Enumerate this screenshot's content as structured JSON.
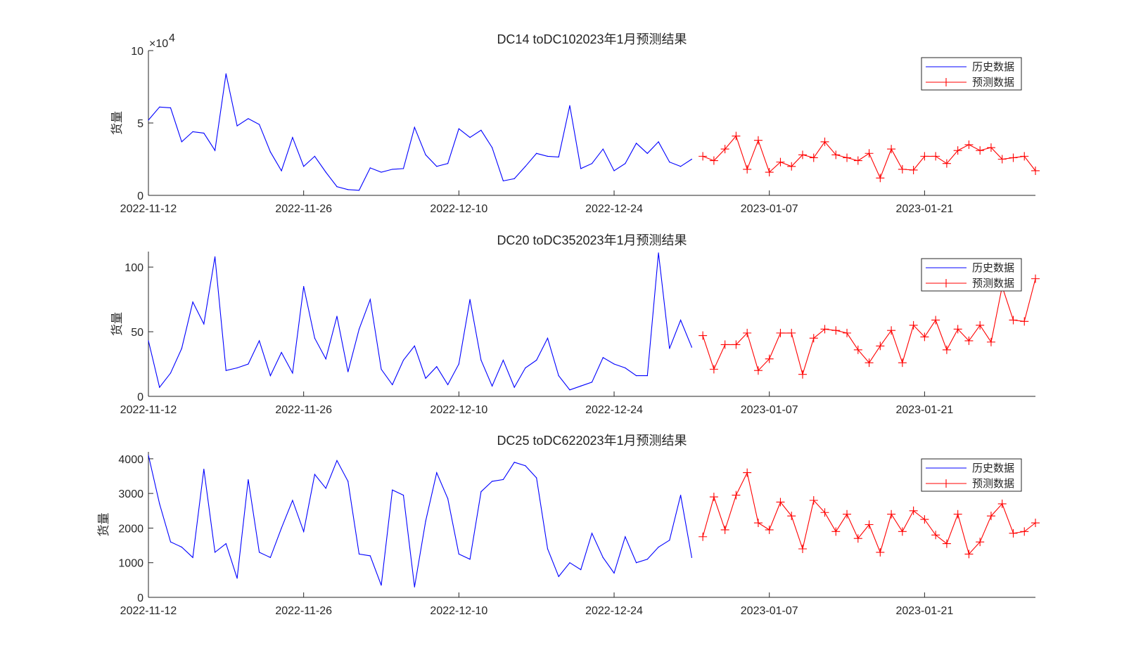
{
  "chart_data": [
    {
      "type": "line",
      "title": "DC14 toDC102023年1月预测结果",
      "ylabel": "货量",
      "xlabel": "",
      "ylim": [
        0,
        100000
      ],
      "yticks": [
        0,
        50000,
        100000
      ],
      "ytick_labels": [
        "0",
        "5",
        "10"
      ],
      "y_exponent_label": "×10",
      "y_exponent_power": "4",
      "xlim": [
        "2022-11-12",
        "2023-01-31"
      ],
      "xticks": [
        "2022-11-12",
        "2022-11-26",
        "2022-12-10",
        "2022-12-24",
        "2023-01-07",
        "2023-01-21"
      ],
      "legend_position": "top-right",
      "series": [
        {
          "name": "历史数据",
          "color": "#0000ff",
          "marker": "none",
          "start_date": "2022-11-12",
          "values": [
            52000,
            61000,
            60500,
            37000,
            44000,
            43000,
            31000,
            84000,
            48000,
            53000,
            49000,
            30000,
            17000,
            40000,
            20000,
            27000,
            16000,
            6000,
            4000,
            3500,
            19000,
            16000,
            18000,
            18500,
            47000,
            28000,
            20000,
            22000,
            46000,
            40000,
            45000,
            33000,
            10000,
            11500,
            20000,
            29000,
            27000,
            26500,
            62000,
            18500,
            22000,
            32000,
            17000,
            22000,
            36000,
            29000,
            37000,
            23000,
            20000,
            25000
          ]
        },
        {
          "name": "预测数据",
          "color": "#ff0000",
          "marker": "+",
          "start_date": "2023-01-01",
          "values": [
            27000,
            24000,
            32000,
            41000,
            18000,
            38000,
            16000,
            23000,
            20000,
            28000,
            26000,
            37000,
            28000,
            26000,
            24000,
            29000,
            12000,
            32000,
            18000,
            17500,
            27000,
            27000,
            22000,
            31000,
            35000,
            31000,
            33000,
            25000,
            26000,
            27000,
            17000
          ]
        }
      ]
    },
    {
      "type": "line",
      "title": "DC20 toDC352023年1月预测结果",
      "ylabel": "货量",
      "xlabel": "",
      "ylim": [
        0,
        112
      ],
      "yticks": [
        0,
        50,
        100
      ],
      "ytick_labels": [
        "0",
        "50",
        "100"
      ],
      "xlim": [
        "2022-11-12",
        "2023-01-31"
      ],
      "xticks": [
        "2022-11-12",
        "2022-11-26",
        "2022-12-10",
        "2022-12-24",
        "2023-01-07",
        "2023-01-21"
      ],
      "legend_position": "top-right",
      "series": [
        {
          "name": "历史数据",
          "color": "#0000ff",
          "marker": "none",
          "start_date": "2022-11-12",
          "values": [
            43,
            7,
            18,
            37,
            73,
            56,
            108,
            20,
            22,
            25,
            43,
            16,
            34,
            18,
            85,
            45,
            29,
            62,
            19,
            52,
            75,
            21,
            9,
            28,
            39,
            14,
            23,
            9,
            25,
            75,
            28,
            8,
            28,
            7,
            22,
            28,
            45,
            16,
            5,
            8,
            11,
            30,
            25,
            22,
            16,
            16,
            111,
            37,
            59,
            38
          ]
        },
        {
          "name": "预测数据",
          "color": "#ff0000",
          "marker": "+",
          "start_date": "2023-01-01",
          "values": [
            47,
            21,
            40,
            40,
            49,
            20,
            29,
            49,
            49,
            17,
            45,
            52,
            51,
            49,
            36,
            26,
            39,
            51,
            26,
            55,
            46,
            59,
            36,
            52,
            43,
            55,
            42,
            85,
            59,
            58,
            91
          ]
        }
      ]
    },
    {
      "type": "line",
      "title": "DC25 toDC622023年1月预测结果",
      "ylabel": "货量",
      "xlabel": "",
      "ylim": [
        0,
        4200
      ],
      "yticks": [
        0,
        1000,
        2000,
        3000,
        4000
      ],
      "ytick_labels": [
        "0",
        "1000",
        "2000",
        "3000",
        "4000"
      ],
      "xlim": [
        "2022-11-12",
        "2023-01-31"
      ],
      "xticks": [
        "2022-11-12",
        "2022-11-26",
        "2022-12-10",
        "2022-12-24",
        "2023-01-07",
        "2023-01-21"
      ],
      "legend_position": "top-right",
      "series": [
        {
          "name": "历史数据",
          "color": "#0000ff",
          "marker": "none",
          "start_date": "2022-11-12",
          "values": [
            4100,
            2700,
            1600,
            1450,
            1150,
            3700,
            1300,
            1550,
            550,
            3400,
            1300,
            1150,
            2000,
            2800,
            1900,
            3550,
            3150,
            3950,
            3350,
            1250,
            1200,
            350,
            3100,
            2950,
            300,
            2200,
            3600,
            2850,
            1250,
            1100,
            3050,
            3350,
            3400,
            3900,
            3800,
            3450,
            1400,
            600,
            1000,
            800,
            1850,
            1150,
            700,
            1750,
            1000,
            1100,
            1450,
            1650,
            2950,
            1150
          ]
        },
        {
          "name": "预测数据",
          "color": "#ff0000",
          "marker": "+",
          "start_date": "2023-01-01",
          "values": [
            1750,
            2900,
            1950,
            2950,
            3600,
            2150,
            1950,
            2750,
            2350,
            1400,
            2800,
            2450,
            1900,
            2400,
            1700,
            2100,
            1300,
            2400,
            1900,
            2500,
            2250,
            1800,
            1550,
            2400,
            1250,
            1600,
            2350,
            2700,
            1850,
            1900,
            2150
          ]
        }
      ]
    }
  ]
}
